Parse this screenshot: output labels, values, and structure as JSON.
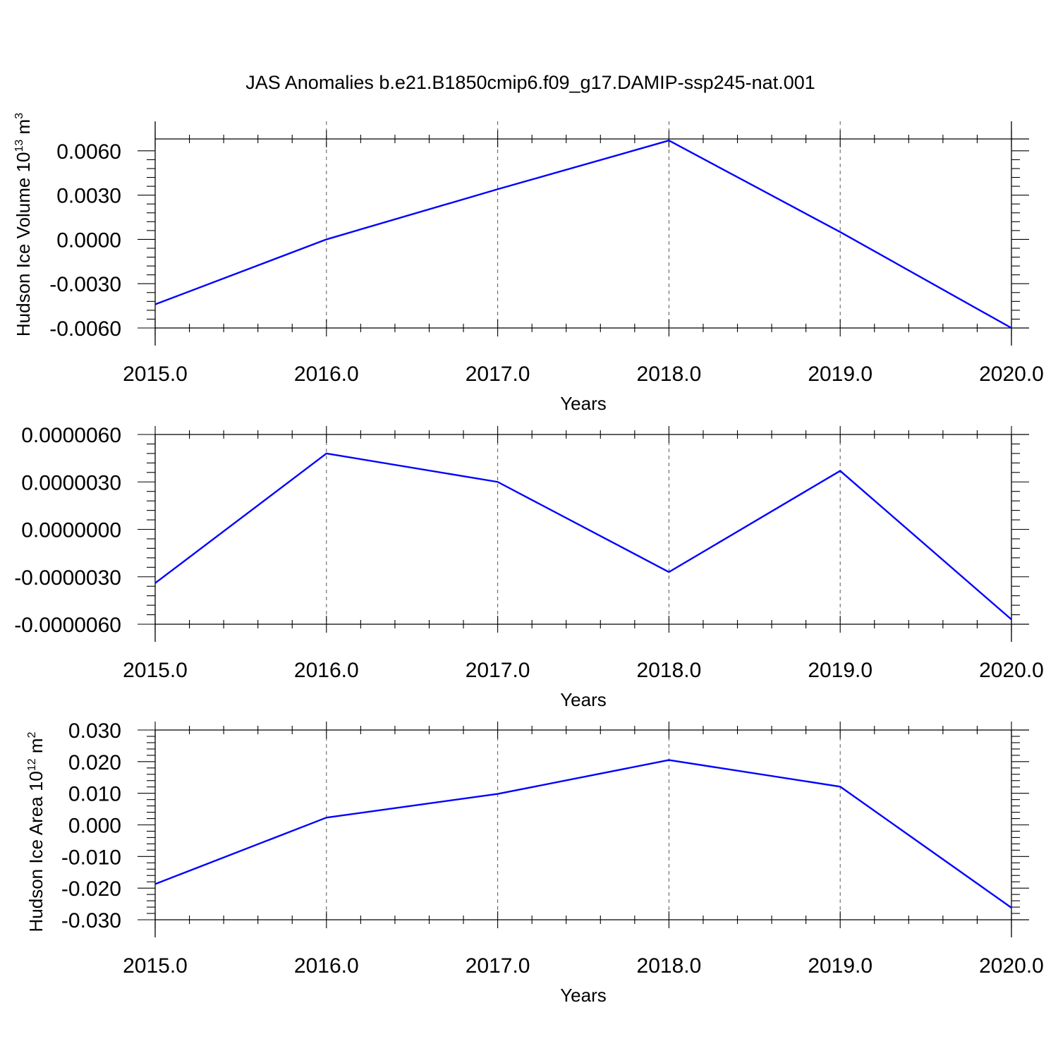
{
  "title": "JAS Anomalies b.e21.B1850cmip6.f09_g17.DAMIP-ssp245-nat.001",
  "series_color": "#0000ff",
  "chart_data": [
    {
      "type": "line",
      "ylabel": "Hudson Ice Volume 10",
      "ylabel_sup": "13",
      "ylabel_unit": " m",
      "ylabel_unit_sup": "3",
      "xlabel": "Years",
      "x": [
        2015,
        2016,
        2017,
        2018,
        2019,
        2020
      ],
      "y": [
        -0.0044,
        0.0,
        0.0034,
        0.0067,
        0.0005,
        -0.006
      ],
      "xlim": [
        2015,
        2020.1
      ],
      "ylim": [
        -0.006,
        0.008
      ],
      "xticks": [
        2015,
        2016,
        2017,
        2018,
        2019,
        2020
      ],
      "xtick_labels": [
        "2015.0",
        "2016.0",
        "2017.0",
        "2018.0",
        "2019.0",
        "2020.0"
      ],
      "yticks": [
        -0.006,
        -0.003,
        0.0,
        0.003,
        0.006
      ],
      "ytick_labels": [
        "-0.0060",
        "-0.0030",
        "0.0000",
        "0.0030",
        "0.0060"
      ],
      "grid": "x-dashed"
    },
    {
      "type": "line",
      "ylabel": "",
      "xlabel": "Years",
      "x": [
        2015,
        2016,
        2017,
        2018,
        2019,
        2020
      ],
      "y": [
        -3.4e-06,
        4.8e-06,
        3e-06,
        -2.7e-06,
        3.7e-06,
        -5.7e-06
      ],
      "xlim": [
        2015,
        2020.1
      ],
      "ylim": [
        -6e-06,
        6e-06
      ],
      "xticks": [
        2015,
        2016,
        2017,
        2018,
        2019,
        2020
      ],
      "xtick_labels": [
        "2015.0",
        "2016.0",
        "2017.0",
        "2018.0",
        "2019.0",
        "2020.0"
      ],
      "yticks": [
        -6e-06,
        -3e-06,
        0.0,
        3e-06,
        6e-06
      ],
      "ytick_labels": [
        "-0.0000060",
        "-0.0000030",
        "0.0000000",
        "0.0000030",
        "0.0000060"
      ],
      "grid": "x-dashed"
    },
    {
      "type": "line",
      "ylabel": "Hudson Ice Area 10",
      "ylabel_sup": "12",
      "ylabel_unit": " m",
      "ylabel_unit_sup": "2",
      "xlabel": "Years",
      "x": [
        2015,
        2016,
        2017,
        2018,
        2019,
        2020
      ],
      "y": [
        -0.0187,
        0.0023,
        0.0098,
        0.0205,
        0.0121,
        -0.0262
      ],
      "xlim": [
        2015,
        2020.1
      ],
      "ylim": [
        -0.03,
        0.03
      ],
      "xticks": [
        2015,
        2016,
        2017,
        2018,
        2019,
        2020
      ],
      "xtick_labels": [
        "2015.0",
        "2016.0",
        "2017.0",
        "2018.0",
        "2019.0",
        "2020.0"
      ],
      "yticks": [
        -0.03,
        -0.02,
        -0.01,
        0.0,
        0.01,
        0.02,
        0.03
      ],
      "ytick_labels": [
        "-0.030",
        "-0.020",
        "-0.010",
        "0.000",
        "0.010",
        "0.020",
        "0.030"
      ],
      "grid": "x-dashed"
    }
  ]
}
